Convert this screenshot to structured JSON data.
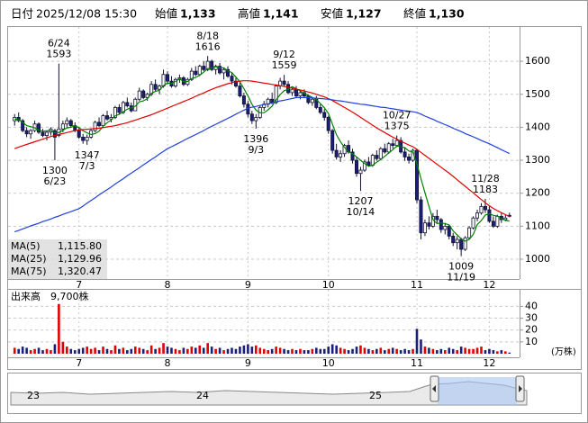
{
  "header": {
    "items": [
      {
        "label": "日付",
        "value": "2025/12/08 15:30",
        "color": "#000000",
        "bold": false
      },
      {
        "label": "始値",
        "value": "1,133",
        "color": "#000000",
        "bold": true
      },
      {
        "label": "高値",
        "value": "1,141",
        "color": "#e00000",
        "bold": true
      },
      {
        "label": "安値",
        "value": "1,127",
        "color": "#008000",
        "bold": true
      },
      {
        "label": "終値",
        "value": "1,130",
        "color": "#000000",
        "bold": true
      }
    ]
  },
  "navigator": {
    "labels": [
      "23",
      "24",
      "25"
    ]
  },
  "chart_data": [
    {
      "type": "candlestick",
      "categories": [
        null,
        null,
        null,
        null,
        null,
        null,
        null,
        null,
        null,
        null,
        null,
        null,
        null,
        null,
        null,
        null,
        "7",
        null,
        null,
        null,
        null,
        null,
        null,
        null,
        null,
        null,
        null,
        null,
        null,
        null,
        null,
        null,
        null,
        null,
        null,
        null,
        null,
        null,
        "8",
        null,
        null,
        null,
        null,
        null,
        null,
        null,
        null,
        null,
        null,
        null,
        null,
        null,
        null,
        null,
        null,
        null,
        null,
        null,
        "9",
        null,
        null,
        null,
        null,
        null,
        null,
        null,
        null,
        null,
        null,
        null,
        null,
        null,
        null,
        null,
        null,
        null,
        null,
        null,
        "10",
        null,
        null,
        null,
        null,
        null,
        null,
        null,
        null,
        null,
        null,
        null,
        null,
        null,
        null,
        null,
        null,
        null,
        null,
        null,
        null,
        null,
        "11",
        null,
        null,
        null,
        null,
        null,
        null,
        null,
        null,
        null,
        null,
        null,
        null,
        null,
        null,
        null,
        null,
        null,
        "12",
        null,
        null,
        null,
        null,
        null
      ],
      "open": [
        1420,
        1430,
        1420,
        1390,
        1380,
        1390,
        1410,
        1385,
        1375,
        1385,
        1390,
        1375,
        1395,
        1410,
        1420,
        1405,
        1390,
        1370,
        1360,
        1370,
        1390,
        1415,
        1405,
        1435,
        1425,
        1430,
        1460,
        1445,
        1475,
        1465,
        1450,
        1485,
        1510,
        1490,
        1500,
        1530,
        1515,
        1525,
        1560,
        1540,
        1525,
        1545,
        1550,
        1530,
        1545,
        1570,
        1560,
        1585,
        1575,
        1600,
        1575,
        1585,
        1565,
        1575,
        1555,
        1540,
        1525,
        1495,
        1470,
        1440,
        1420,
        1430,
        1460,
        1470,
        1485,
        1475,
        1525,
        1540,
        1530,
        1505,
        1515,
        1495,
        1505,
        1495,
        1475,
        1485,
        1460,
        1445,
        1430,
        1390,
        1330,
        1310,
        1320,
        1345,
        1325,
        1300,
        1260,
        1270,
        1295,
        1285,
        1315,
        1305,
        1335,
        1325,
        1350,
        1345,
        1360,
        1325,
        1310,
        1300,
        1330,
        1180,
        1080,
        1110,
        1100,
        1130,
        1120,
        1090,
        1100,
        1070,
        1050,
        1060,
        1030,
        1065,
        1095,
        1125,
        1140,
        1160,
        1150,
        1115,
        1100,
        1130,
        1120,
        1133
      ],
      "high": [
        1440,
        1445,
        1425,
        1400,
        1395,
        1420,
        1415,
        1395,
        1390,
        1400,
        1395,
        1593,
        1420,
        1430,
        1425,
        1415,
        1400,
        1380,
        1378,
        1395,
        1420,
        1430,
        1440,
        1450,
        1440,
        1465,
        1470,
        1480,
        1490,
        1475,
        1490,
        1520,
        1515,
        1505,
        1540,
        1545,
        1530,
        1575,
        1570,
        1555,
        1550,
        1560,
        1555,
        1550,
        1580,
        1585,
        1590,
        1600,
        1616,
        1605,
        1590,
        1595,
        1580,
        1585,
        1565,
        1550,
        1535,
        1505,
        1480,
        1450,
        1440,
        1465,
        1480,
        1490,
        1505,
        1530,
        1550,
        1559,
        1540,
        1520,
        1525,
        1510,
        1515,
        1500,
        1490,
        1495,
        1470,
        1455,
        1435,
        1395,
        1350,
        1330,
        1350,
        1360,
        1335,
        1310,
        1280,
        1302,
        1310,
        1320,
        1330,
        1340,
        1350,
        1355,
        1365,
        1375,
        1370,
        1340,
        1320,
        1335,
        1335,
        1190,
        1120,
        1130,
        1140,
        1150,
        1125,
        1110,
        1105,
        1080,
        1070,
        1065,
        1070,
        1100,
        1130,
        1150,
        1170,
        1183,
        1160,
        1130,
        1135,
        1140,
        1135,
        1141
      ],
      "low": [
        1405,
        1415,
        1385,
        1370,
        1365,
        1385,
        1380,
        1370,
        1360,
        1375,
        1300,
        1370,
        1385,
        1400,
        1400,
        1385,
        1365,
        1350,
        1347,
        1365,
        1385,
        1400,
        1400,
        1420,
        1415,
        1425,
        1440,
        1440,
        1460,
        1445,
        1450,
        1480,
        1485,
        1480,
        1495,
        1510,
        1500,
        1520,
        1530,
        1520,
        1520,
        1535,
        1525,
        1525,
        1540,
        1555,
        1555,
        1570,
        1570,
        1570,
        1560,
        1560,
        1545,
        1550,
        1530,
        1520,
        1490,
        1460,
        1430,
        1410,
        1396,
        1425,
        1450,
        1460,
        1470,
        1470,
        1515,
        1525,
        1500,
        1495,
        1490,
        1485,
        1490,
        1470,
        1465,
        1455,
        1440,
        1420,
        1380,
        1320,
        1302,
        1295,
        1310,
        1320,
        1290,
        1250,
        1207,
        1265,
        1280,
        1280,
        1299,
        1301,
        1320,
        1320,
        1335,
        1340,
        1320,
        1298,
        1290,
        1295,
        1170,
        1060,
        1070,
        1090,
        1095,
        1110,
        1080,
        1075,
        1060,
        1040,
        1030,
        1009,
        1025,
        1060,
        1090,
        1115,
        1135,
        1140,
        1110,
        1095,
        1095,
        1110,
        1115,
        1127
      ],
      "close": [
        1430,
        1420,
        1390,
        1380,
        1390,
        1410,
        1385,
        1375,
        1385,
        1395,
        1370,
        1395,
        1410,
        1420,
        1405,
        1390,
        1370,
        1360,
        1370,
        1390,
        1415,
        1405,
        1435,
        1425,
        1430,
        1460,
        1445,
        1475,
        1465,
        1450,
        1485,
        1510,
        1490,
        1500,
        1530,
        1515,
        1525,
        1560,
        1540,
        1525,
        1545,
        1550,
        1530,
        1545,
        1570,
        1560,
        1585,
        1575,
        1600,
        1575,
        1585,
        1565,
        1575,
        1555,
        1540,
        1525,
        1495,
        1470,
        1440,
        1420,
        1430,
        1460,
        1470,
        1485,
        1475,
        1525,
        1540,
        1530,
        1505,
        1515,
        1495,
        1505,
        1495,
        1475,
        1485,
        1460,
        1445,
        1430,
        1390,
        1330,
        1310,
        1320,
        1345,
        1325,
        1300,
        1260,
        1270,
        1295,
        1285,
        1315,
        1305,
        1335,
        1325,
        1350,
        1345,
        1360,
        1325,
        1310,
        1300,
        1330,
        1180,
        1080,
        1110,
        1100,
        1130,
        1120,
        1090,
        1100,
        1070,
        1050,
        1060,
        1030,
        1065,
        1095,
        1125,
        1140,
        1160,
        1150,
        1115,
        1100,
        1130,
        1120,
        1125,
        1130
      ],
      "up_color": "#ffffff",
      "down_color": "#1a1f7a",
      "outline_color": "#111133",
      "series": [
        {
          "name": "MA(5)",
          "color": "#008000",
          "value_label": "1,115.80",
          "values": [
            1425,
            1423,
            1415,
            1405,
            1402,
            1398,
            1391,
            1388,
            1389,
            1390,
            1384,
            1384,
            1391,
            1398,
            1400,
            1404,
            1399,
            1389,
            1383,
            1378,
            1381,
            1388,
            1403,
            1414,
            1422,
            1435,
            1439,
            1447,
            1455,
            1459,
            1464,
            1477,
            1480,
            1487,
            1503,
            1509,
            1512,
            1526,
            1534,
            1533,
            1539,
            1547,
            1538,
            1539,
            1548,
            1551,
            1558,
            1567,
            1578,
            1579,
            1584,
            1580,
            1580,
            1571,
            1566,
            1552,
            1538,
            1517,
            1495,
            1470,
            1452,
            1444,
            1444,
            1453,
            1464,
            1483,
            1499,
            1511,
            1515,
            1523,
            1517,
            1510,
            1503,
            1497,
            1491,
            1484,
            1472,
            1459,
            1442,
            1409,
            1377,
            1356,
            1339,
            1326,
            1320,
            1310,
            1300,
            1290,
            1282,
            1285,
            1294,
            1302,
            1312,
            1322,
            1332,
            1343,
            1341,
            1338,
            1328,
            1325,
            1289,
            1244,
            1202,
            1160,
            1120,
            1108,
            1110,
            1108,
            1104,
            1086,
            1074,
            1062,
            1055,
            1060,
            1075,
            1105,
            1117,
            1134,
            1138,
            1133,
            1131,
            1123,
            1118,
            1115.8
          ]
        },
        {
          "name": "MA(25)",
          "color": "#e00000",
          "value_label": "1,129.96",
          "values": [
            1335,
            1340,
            1344,
            1348,
            1352,
            1356,
            1360,
            1364,
            1368,
            1372,
            1375,
            1378,
            1381,
            1384,
            1387,
            1390,
            1392,
            1393,
            1394,
            1395,
            1396,
            1397,
            1399,
            1401,
            1403,
            1405,
            1408,
            1411,
            1414,
            1418,
            1422,
            1426,
            1430,
            1434,
            1438,
            1443,
            1448,
            1453,
            1458,
            1463,
            1468,
            1473,
            1478,
            1483,
            1488,
            1494,
            1499,
            1504,
            1510,
            1515,
            1520,
            1524,
            1528,
            1532,
            1535,
            1538,
            1540,
            1541,
            1541,
            1540,
            1538,
            1536,
            1534,
            1532,
            1530,
            1528,
            1526,
            1524,
            1522,
            1519,
            1516,
            1513,
            1510,
            1507,
            1504,
            1500,
            1496,
            1492,
            1487,
            1481,
            1474,
            1467,
            1460,
            1453,
            1446,
            1438,
            1430,
            1422,
            1414,
            1406,
            1398,
            1391,
            1384,
            1377,
            1370,
            1364,
            1358,
            1352,
            1346,
            1341,
            1333,
            1324,
            1315,
            1306,
            1297,
            1288,
            1279,
            1270,
            1261,
            1251,
            1241,
            1231,
            1221,
            1211,
            1201,
            1191,
            1181,
            1171,
            1162,
            1154,
            1147,
            1141,
            1135,
            1129.96
          ]
        },
        {
          "name": "MA(75)",
          "color": "#2040e0",
          "value_label": "1,320.47",
          "values": [
            1083,
            1087,
            1092,
            1096,
            1101,
            1105,
            1109,
            1114,
            1118,
            1122,
            1127,
            1131,
            1136,
            1140,
            1144,
            1149,
            1153,
            1161,
            1170,
            1178,
            1186,
            1195,
            1203,
            1211,
            1219,
            1228,
            1236,
            1244,
            1253,
            1261,
            1269,
            1277,
            1286,
            1294,
            1302,
            1310,
            1319,
            1327,
            1335,
            1341,
            1347,
            1353,
            1360,
            1366,
            1372,
            1378,
            1384,
            1390,
            1397,
            1403,
            1409,
            1415,
            1421,
            1427,
            1433,
            1440,
            1446,
            1452,
            1458,
            1461,
            1463,
            1466,
            1469,
            1471,
            1474,
            1477,
            1480,
            1482,
            1485,
            1487,
            1490,
            1490,
            1490,
            1490,
            1489,
            1488,
            1487,
            1486,
            1485,
            1483,
            1481,
            1480,
            1478,
            1476,
            1474,
            1472,
            1470,
            1469,
            1467,
            1465,
            1463,
            1461,
            1460,
            1458,
            1456,
            1454,
            1452,
            1450,
            1449,
            1447,
            1445,
            1440,
            1434,
            1429,
            1424,
            1418,
            1413,
            1408,
            1403,
            1397,
            1392,
            1387,
            1381,
            1376,
            1371,
            1366,
            1360,
            1355,
            1350,
            1344,
            1338,
            1332,
            1326,
            1320.47
          ]
        }
      ],
      "annotations": [
        {
          "date": "6/24",
          "value": 1593
        },
        {
          "date": "6/23",
          "value": 1300
        },
        {
          "date": "7/3",
          "value": 1347
        },
        {
          "date": "8/18",
          "value": 1616
        },
        {
          "date": "9/3",
          "value": 1396
        },
        {
          "date": "9/12",
          "value": 1559
        },
        {
          "date": "10/14",
          "value": 1207
        },
        {
          "date": "10/27",
          "value": 1375
        },
        {
          "date": "11/19",
          "value": 1009
        },
        {
          "date": "11/28",
          "value": 1183
        }
      ],
      "ylim": [
        940,
        1704
      ],
      "yticks": [
        1000,
        1100,
        1200,
        1300,
        1400,
        1500,
        1600
      ],
      "grid": true
    },
    {
      "type": "bar",
      "title": "出来高",
      "subtitle": "9,700株",
      "y_label": "(万株)",
      "values": [
        5,
        4,
        6,
        5,
        3,
        4,
        5,
        3,
        4,
        3,
        8,
        42,
        10,
        6,
        4,
        3,
        4,
        5,
        6,
        4,
        5,
        3,
        6,
        4,
        3,
        7,
        4,
        5,
        3,
        4,
        6,
        5,
        4,
        3,
        7,
        4,
        5,
        9,
        6,
        5,
        4,
        3,
        5,
        4,
        6,
        5,
        7,
        5,
        9,
        6,
        4,
        5,
        3,
        4,
        5,
        4,
        6,
        7,
        8,
        6,
        7,
        5,
        4,
        3,
        4,
        6,
        5,
        4,
        3,
        4,
        3,
        4,
        3,
        3,
        4,
        5,
        4,
        4,
        6,
        8,
        7,
        5,
        4,
        3,
        4,
        6,
        7,
        5,
        4,
        3,
        4,
        5,
        3,
        4,
        5,
        4,
        3,
        4,
        3,
        4,
        21,
        12,
        6,
        5,
        4,
        3,
        4,
        3,
        5,
        4,
        3,
        6,
        5,
        4,
        4,
        5,
        6,
        3,
        4,
        3,
        2,
        3,
        2,
        0.97
      ],
      "up_color": "#e00000",
      "down_color": "#1a1f7a",
      "ylim": [
        0,
        54
      ],
      "yticks": [
        10,
        20,
        30,
        40
      ],
      "grid": true
    }
  ]
}
